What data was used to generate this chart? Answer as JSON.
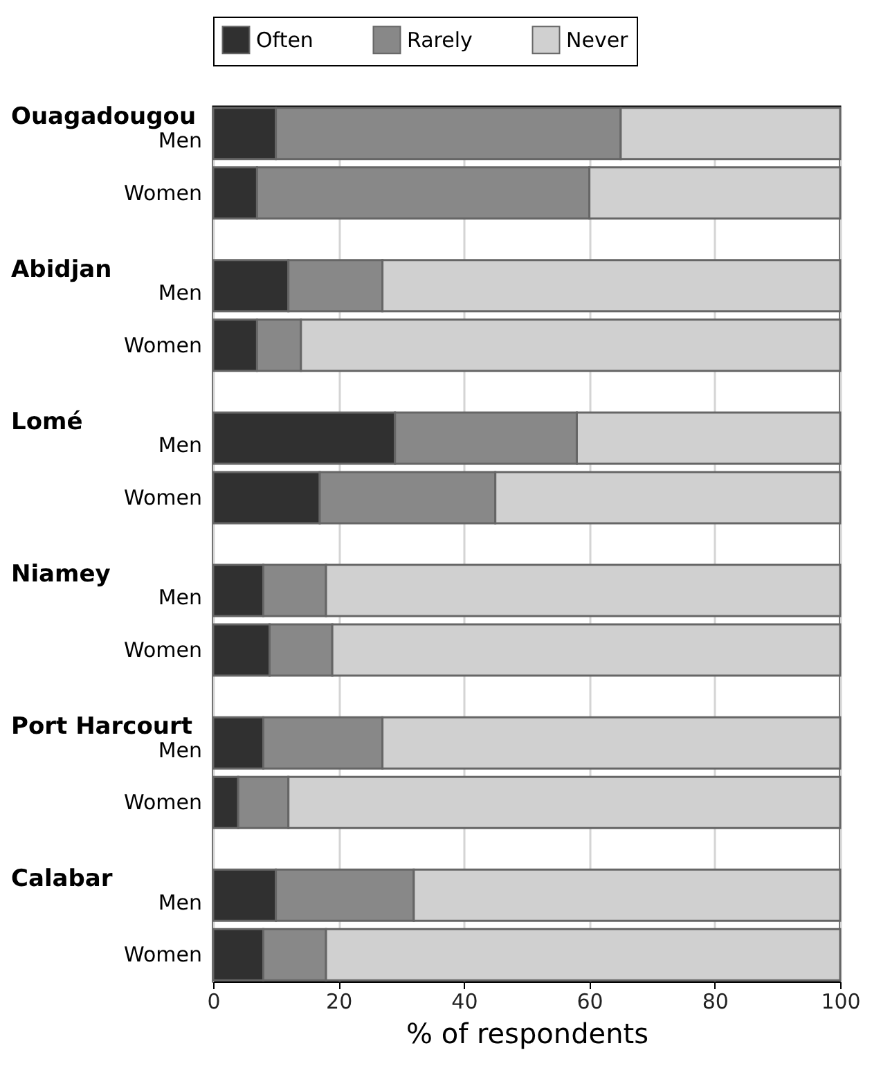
{
  "chart_data": {
    "type": "bar",
    "orientation": "horizontal",
    "stacked": true,
    "categories": [
      "Men",
      "Women",
      "Men",
      "Women",
      "Men",
      "Women",
      "Men",
      "Women",
      "Men",
      "Women",
      "Men",
      "Women"
    ],
    "series": [
      {
        "name": "Often",
        "color": "#303030",
        "values": [
          10,
          7,
          12,
          7,
          29,
          17,
          8,
          9,
          8,
          4,
          10,
          8
        ]
      },
      {
        "name": "Rarely",
        "color": "#888888",
        "values": [
          55,
          53,
          15,
          7,
          29,
          28,
          10,
          10,
          19,
          8,
          22,
          10
        ]
      },
      {
        "name": "Never",
        "color": "#d0d0d0",
        "values": [
          35,
          40,
          73,
          86,
          42,
          55,
          82,
          81,
          73,
          88,
          68,
          82
        ]
      }
    ],
    "annotations": [
      "Ouagadougou",
      "Abidjan",
      "Lomé",
      "Niamey",
      "Port Harcourt",
      "Calabar"
    ],
    "xlabel": "% of respondents",
    "xlim": [
      0,
      100
    ],
    "xticks": [
      0,
      20,
      40,
      60,
      80,
      100
    ],
    "grid": "x",
    "legend": "top"
  }
}
